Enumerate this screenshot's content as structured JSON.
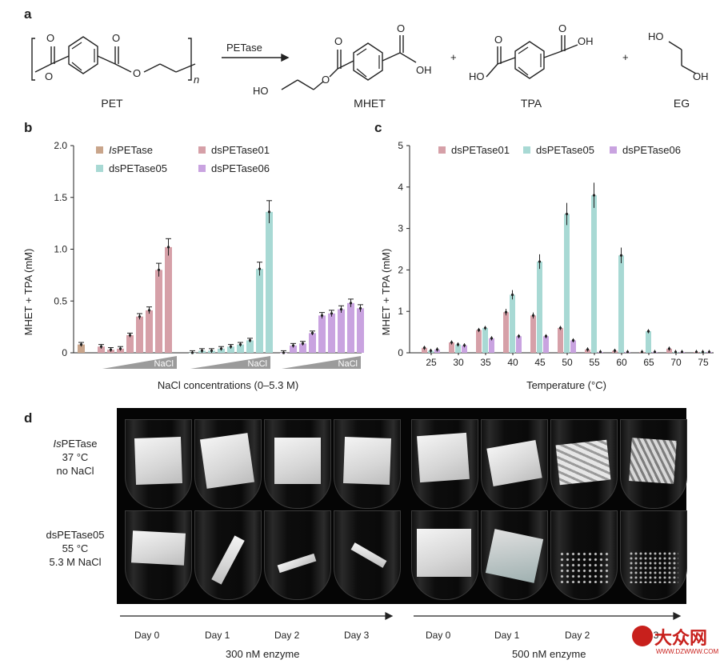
{
  "panels": {
    "a": "a",
    "b": "b",
    "c": "c",
    "d": "d"
  },
  "scheme": {
    "enzyme": "PETase",
    "n": "n",
    "plus": "+",
    "compounds": {
      "pet": "PET",
      "mhet": "MHET",
      "tpa": "TPA",
      "eg": "EG"
    },
    "groups": {
      "o": "O",
      "oh": "OH",
      "ho": "HO"
    }
  },
  "chart_data": [
    {
      "type": "bar",
      "panel": "b",
      "title": "",
      "xlabel": "NaCl concentrations (0–5.3 M)",
      "ylabel": "MHET + TPA (mM)",
      "ylim": [
        0,
        2.0
      ],
      "yticks": [
        "0",
        "0.5",
        "1.0",
        "1.5",
        "2.0"
      ],
      "gradient_label": "NaCl",
      "legend_position": "top-left",
      "series": [
        {
          "name": "IsPETase",
          "name_italic": "Is",
          "name_rest": "PETase",
          "color": "#c9a58b",
          "values": [
            0.08
          ]
        },
        {
          "name": "dsPETase01",
          "color": "#d6a0a8",
          "values": [
            0.06,
            0.03,
            0.04,
            0.17,
            0.35,
            0.41,
            0.8,
            1.02
          ]
        },
        {
          "name": "dsPETase05",
          "color": "#a8d9d4",
          "values": [
            0.0,
            0.02,
            0.02,
            0.04,
            0.06,
            0.08,
            0.12,
            0.81,
            1.36
          ]
        },
        {
          "name": "dsPETase06",
          "color": "#c9a3e0",
          "values": [
            0.0,
            0.07,
            0.09,
            0.19,
            0.36,
            0.38,
            0.42,
            0.48,
            0.43
          ]
        }
      ]
    },
    {
      "type": "bar",
      "panel": "c",
      "title": "",
      "xlabel": "Temperature (°C)",
      "ylabel": "MHET + TPA (mM)",
      "ylim": [
        0,
        5
      ],
      "yticks": [
        "0",
        "1",
        "2",
        "3",
        "4",
        "5"
      ],
      "legend_position": "top",
      "categories": [
        "25",
        "30",
        "35",
        "40",
        "45",
        "50",
        "55",
        "60",
        "65",
        "70",
        "75"
      ],
      "series": [
        {
          "name": "dsPETase01",
          "color": "#d6a0a8",
          "values": [
            0.12,
            0.25,
            0.55,
            0.98,
            0.9,
            0.6,
            0.08,
            0.05,
            0.02,
            0.1,
            0.02
          ]
        },
        {
          "name": "dsPETase05",
          "color": "#a8d9d4",
          "values": [
            0.05,
            0.2,
            0.6,
            1.4,
            2.2,
            3.35,
            3.8,
            2.35,
            0.52,
            0.02,
            0.02
          ]
        },
        {
          "name": "dsPETase06",
          "color": "#c9a3e0",
          "values": [
            0.08,
            0.18,
            0.35,
            0.4,
            0.4,
            0.3,
            0.02,
            0.02,
            0.02,
            0.02,
            0.02
          ]
        }
      ]
    }
  ],
  "photo": {
    "row1": {
      "name_italic": "Is",
      "name_rest": "PETase",
      "temp": "37 °C",
      "salt": "no NaCl"
    },
    "row2": {
      "name": "dsPETase05",
      "temp": "55 °C",
      "salt": "5.3 M NaCl"
    },
    "days": [
      "Day 0",
      "Day 1",
      "Day 2",
      "Day 3"
    ],
    "enzyme_left": "300 nM enzyme",
    "enzyme_right": "500 nM enzyme"
  },
  "watermark": {
    "text": "大众网",
    "url": "WWW.DZWWW.COM"
  }
}
